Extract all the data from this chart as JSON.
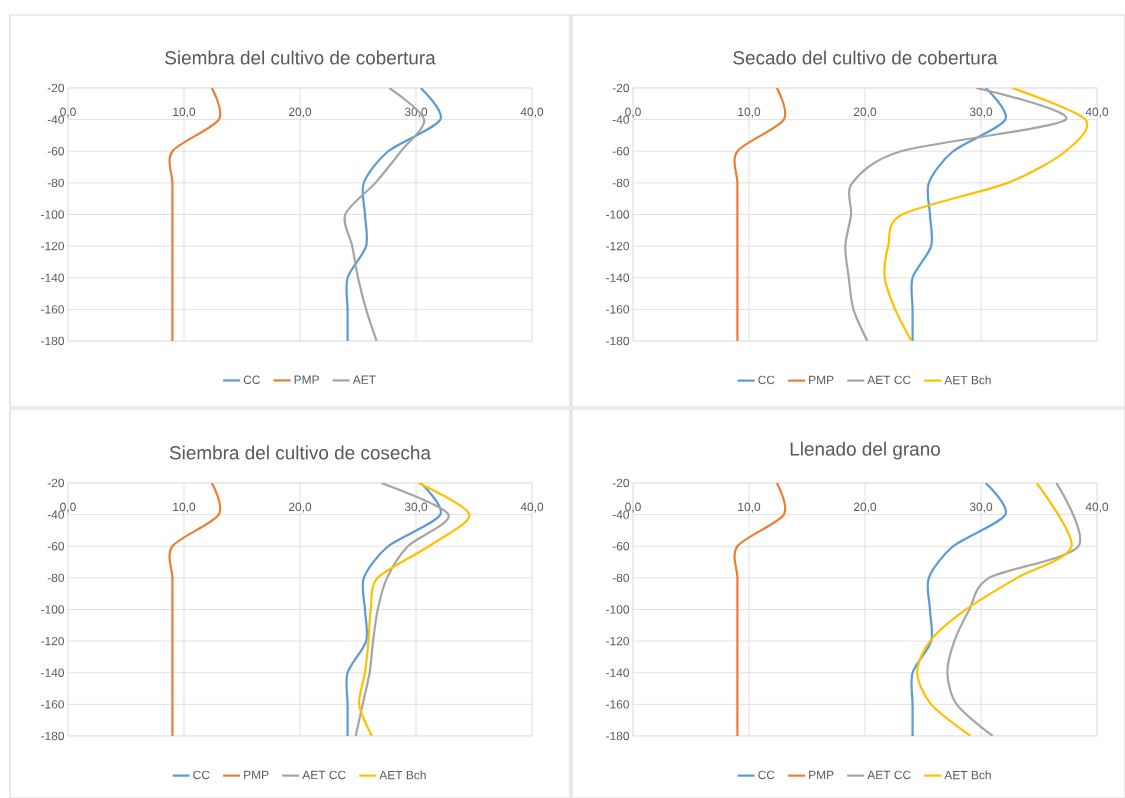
{
  "chart_data": [
    {
      "type": "line",
      "title": "Siembra del cultivo de cobertura",
      "xlim": [
        0,
        40
      ],
      "ylim": [
        -180,
        -20
      ],
      "xticks": [
        {
          "value": 0,
          "label": "0,0"
        },
        {
          "value": 10,
          "label": "10,0"
        },
        {
          "value": 20,
          "label": "20,0"
        },
        {
          "value": 30,
          "label": "30,0"
        },
        {
          "value": 40,
          "label": "40,0"
        }
      ],
      "yticks": [
        -20,
        -40,
        -60,
        -80,
        -100,
        -120,
        -140,
        -160,
        -180
      ],
      "grid": true,
      "legend": "bottom",
      "series": [
        {
          "name": "CC",
          "color": "#5b9bd5",
          "x": [
            30.4,
            32.1,
            27.6,
            25.5,
            25.6,
            25.7,
            24.1,
            24.1,
            24.1
          ],
          "values": [
            -20,
            -40,
            -60,
            -80,
            -100,
            -120,
            -140,
            -160,
            -180
          ]
        },
        {
          "name": "PMP",
          "color": "#ed7d31",
          "x": [
            12.4,
            13.0,
            9.0,
            9.0,
            9.0,
            9.0,
            9.0,
            9.0,
            9.0
          ],
          "values": [
            -20,
            -40,
            -60,
            -80,
            -100,
            -120,
            -140,
            -160,
            -180
          ]
        },
        {
          "name": "AET",
          "color": "#a5a5a5",
          "x": [
            27.7,
            30.7,
            28.7,
            26.5,
            23.9,
            24.5,
            25.0,
            25.7,
            26.6
          ],
          "values": [
            -20,
            -40,
            -60,
            -80,
            -100,
            -120,
            -140,
            -160,
            -180
          ]
        }
      ]
    },
    {
      "type": "line",
      "title": "Secado del cultivo de cobertura",
      "xlim": [
        0,
        40
      ],
      "ylim": [
        -180,
        -20
      ],
      "xticks": [
        {
          "value": 0,
          "label": "0,0"
        },
        {
          "value": 10,
          "label": "10,0"
        },
        {
          "value": 20,
          "label": "20,0"
        },
        {
          "value": 30,
          "label": "30,0"
        },
        {
          "value": 40,
          "label": "40,0"
        }
      ],
      "yticks": [
        -20,
        -40,
        -60,
        -80,
        -100,
        -120,
        -140,
        -160,
        -180
      ],
      "grid": true,
      "legend": "bottom",
      "series": [
        {
          "name": "CC",
          "color": "#5b9bd5",
          "x": [
            30.4,
            32.1,
            27.6,
            25.5,
            25.6,
            25.7,
            24.1,
            24.1,
            24.1
          ],
          "values": [
            -20,
            -40,
            -60,
            -80,
            -100,
            -120,
            -140,
            -160,
            -180
          ]
        },
        {
          "name": "PMP",
          "color": "#ed7d31",
          "x": [
            12.4,
            13.0,
            9.0,
            9.0,
            9.0,
            9.0,
            9.0,
            9.0,
            9.0
          ],
          "values": [
            -20,
            -40,
            -60,
            -80,
            -100,
            -120,
            -140,
            -160,
            -180
          ]
        },
        {
          "name": "AET CC",
          "color": "#a5a5a5",
          "x": [
            29.6,
            37.3,
            23.1,
            18.9,
            18.8,
            18.3,
            18.6,
            19.0,
            20.2
          ],
          "values": [
            -20,
            -40,
            -60,
            -80,
            -100,
            -120,
            -140,
            -160,
            -180
          ]
        },
        {
          "name": "AET Bch",
          "color": "#ffc000",
          "x": [
            32.7,
            39.0,
            37.3,
            32.3,
            23.2,
            22.0,
            21.7,
            22.6,
            24.0
          ],
          "values": [
            -20,
            -40,
            -60,
            -80,
            -100,
            -120,
            -140,
            -160,
            -180
          ]
        }
      ]
    },
    {
      "type": "line",
      "title": "Siembra del cultivo de cosecha",
      "xlim": [
        0,
        40
      ],
      "ylim": [
        -180,
        -20
      ],
      "xticks": [
        {
          "value": 0,
          "label": "0,0"
        },
        {
          "value": 10,
          "label": "10,0"
        },
        {
          "value": 20,
          "label": "20,0"
        },
        {
          "value": 30,
          "label": "30,0"
        },
        {
          "value": 40,
          "label": "40,0"
        }
      ],
      "yticks": [
        -20,
        -40,
        -60,
        -80,
        -100,
        -120,
        -140,
        -160,
        -180
      ],
      "grid": true,
      "legend": "bottom",
      "series": [
        {
          "name": "CC",
          "color": "#5b9bd5",
          "x": [
            30.4,
            32.1,
            27.6,
            25.5,
            25.6,
            25.7,
            24.1,
            24.1,
            24.1
          ],
          "values": [
            -20,
            -40,
            -60,
            -80,
            -100,
            -120,
            -140,
            -160,
            -180
          ]
        },
        {
          "name": "PMP",
          "color": "#ed7d31",
          "x": [
            12.4,
            13.0,
            9.0,
            9.0,
            9.0,
            9.0,
            9.0,
            9.0,
            9.0
          ],
          "values": [
            -20,
            -40,
            -60,
            -80,
            -100,
            -120,
            -140,
            -160,
            -180
          ]
        },
        {
          "name": "AET CC",
          "color": "#a5a5a5",
          "x": [
            27.0,
            32.8,
            29.3,
            27.5,
            26.7,
            26.3,
            26.0,
            25.4,
            24.8
          ],
          "values": [
            -20,
            -40,
            -60,
            -80,
            -100,
            -120,
            -140,
            -160,
            -180
          ]
        },
        {
          "name": "AET Bch",
          "color": "#ffc000",
          "x": [
            30.2,
            34.6,
            31.1,
            26.7,
            26.1,
            25.9,
            25.6,
            25.1,
            26.2
          ],
          "values": [
            -20,
            -40,
            -60,
            -80,
            -100,
            -120,
            -140,
            -160,
            -180
          ]
        }
      ]
    },
    {
      "type": "line",
      "title": "Llenado del grano",
      "xlim": [
        0,
        40
      ],
      "ylim": [
        -180,
        -20
      ],
      "xticks": [
        {
          "value": 0,
          "label": "0,0"
        },
        {
          "value": 10,
          "label": "10,0"
        },
        {
          "value": 20,
          "label": "20,0"
        },
        {
          "value": 30,
          "label": "30,0"
        },
        {
          "value": 40,
          "label": "40,0"
        }
      ],
      "yticks": [
        -20,
        -40,
        -60,
        -80,
        -100,
        -120,
        -140,
        -160,
        -180
      ],
      "grid": true,
      "legend": "bottom",
      "series": [
        {
          "name": "CC",
          "color": "#5b9bd5",
          "x": [
            30.4,
            32.1,
            27.6,
            25.5,
            25.6,
            25.7,
            24.1,
            24.1,
            24.1
          ],
          "values": [
            -20,
            -40,
            -60,
            -80,
            -100,
            -120,
            -140,
            -160,
            -180
          ]
        },
        {
          "name": "PMP",
          "color": "#ed7d31",
          "x": [
            12.4,
            13.0,
            9.0,
            9.0,
            9.0,
            9.0,
            9.0,
            9.0,
            9.0
          ],
          "values": [
            -20,
            -40,
            -60,
            -80,
            -100,
            -120,
            -140,
            -160,
            -180
          ]
        },
        {
          "name": "AET CC",
          "color": "#a5a5a5",
          "x": [
            36.5,
            38.4,
            30.7,
            29.0,
            27.7,
            27.1,
            27.9,
            31.0
          ],
          "values": [
            -20,
            -60,
            -80,
            -100,
            -120,
            -140,
            -160,
            -180
          ]
        },
        {
          "name": "AET Bch",
          "color": "#ffc000",
          "x": [
            34.8,
            37.8,
            33.1,
            28.7,
            25.6,
            24.5,
            25.7,
            29.1
          ],
          "values": [
            -20,
            -60,
            -80,
            -100,
            -120,
            -140,
            -160,
            -180
          ]
        }
      ]
    }
  ]
}
